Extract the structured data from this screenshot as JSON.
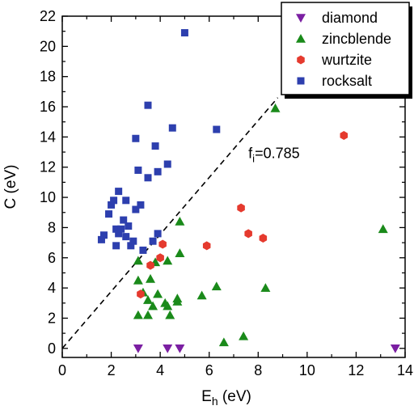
{
  "chart_data": {
    "type": "scatter",
    "xlabel": "E",
    "xlabel_sub": "h",
    "xlabel_unit": " (eV)",
    "ylabel": "C (eV)",
    "xlim": [
      0,
      14
    ],
    "ylim": [
      -0.6,
      22
    ],
    "x_ticks": [
      0,
      2,
      4,
      6,
      8,
      10,
      12,
      14
    ],
    "y_ticks": [
      0,
      2,
      4,
      6,
      8,
      10,
      12,
      14,
      16,
      18,
      20,
      22
    ],
    "legend_position": "top-right",
    "series": [
      {
        "name": "diamond",
        "marker": "triangle-down",
        "color": "#7b1fa2",
        "points": [
          [
            3.1,
            0.0
          ],
          [
            4.3,
            0.0
          ],
          [
            4.8,
            0.0
          ],
          [
            13.6,
            0.0
          ]
        ]
      },
      {
        "name": "zincblende",
        "marker": "triangle-up",
        "color": "#1a8a1a",
        "points": [
          [
            3.1,
            5.8
          ],
          [
            3.1,
            4.5
          ],
          [
            3.1,
            2.2
          ],
          [
            3.3,
            3.7
          ],
          [
            3.5,
            3.2
          ],
          [
            3.5,
            2.2
          ],
          [
            3.6,
            4.6
          ],
          [
            3.7,
            2.8
          ],
          [
            3.8,
            5.7
          ],
          [
            3.9,
            3.6
          ],
          [
            4.2,
            3.0
          ],
          [
            4.3,
            5.8
          ],
          [
            4.3,
            2.8
          ],
          [
            4.4,
            2.2
          ],
          [
            4.7,
            3.3
          ],
          [
            4.7,
            3.1
          ],
          [
            4.8,
            6.3
          ],
          [
            4.8,
            8.4
          ],
          [
            5.7,
            3.5
          ],
          [
            6.3,
            4.1
          ],
          [
            6.6,
            0.4
          ],
          [
            7.4,
            0.8
          ],
          [
            8.3,
            4.0
          ],
          [
            8.7,
            15.9
          ],
          [
            13.1,
            7.9
          ]
        ]
      },
      {
        "name": "wurtzite",
        "marker": "hexagon",
        "color": "#e53a2e",
        "points": [
          [
            3.2,
            3.6
          ],
          [
            3.6,
            5.5
          ],
          [
            4.0,
            6.0
          ],
          [
            4.1,
            6.9
          ],
          [
            5.9,
            6.8
          ],
          [
            7.3,
            9.3
          ],
          [
            7.6,
            7.6
          ],
          [
            8.2,
            7.3
          ],
          [
            11.5,
            14.1
          ]
        ]
      },
      {
        "name": "rocksalt",
        "marker": "square",
        "color": "#2d3fae",
        "points": [
          [
            1.6,
            7.2
          ],
          [
            1.7,
            7.5
          ],
          [
            1.9,
            8.9
          ],
          [
            2.0,
            9.5
          ],
          [
            2.1,
            9.8
          ],
          [
            2.2,
            7.9
          ],
          [
            2.2,
            6.8
          ],
          [
            2.3,
            7.6
          ],
          [
            2.3,
            10.4
          ],
          [
            2.4,
            7.9
          ],
          [
            2.5,
            8.5
          ],
          [
            2.6,
            9.8
          ],
          [
            2.6,
            7.4
          ],
          [
            2.7,
            8.1
          ],
          [
            2.8,
            6.8
          ],
          [
            2.9,
            7.1
          ],
          [
            3.0,
            9.2
          ],
          [
            3.0,
            13.9
          ],
          [
            3.1,
            11.8
          ],
          [
            3.2,
            9.5
          ],
          [
            3.3,
            6.5
          ],
          [
            3.5,
            16.1
          ],
          [
            3.5,
            11.3
          ],
          [
            3.7,
            7.1
          ],
          [
            3.8,
            13.4
          ],
          [
            3.9,
            7.6
          ],
          [
            3.9,
            11.7
          ],
          [
            4.3,
            12.2
          ],
          [
            4.5,
            14.6
          ],
          [
            5.0,
            20.9
          ],
          [
            6.3,
            14.5
          ]
        ]
      }
    ],
    "reference_line": {
      "style": "dashed",
      "from": [
        0,
        0
      ],
      "to": [
        8.8,
        16.6
      ]
    },
    "annotation": {
      "main": "f",
      "sub": "i",
      "rest": "=0.785",
      "x": 7.6,
      "y": 12.6
    }
  }
}
